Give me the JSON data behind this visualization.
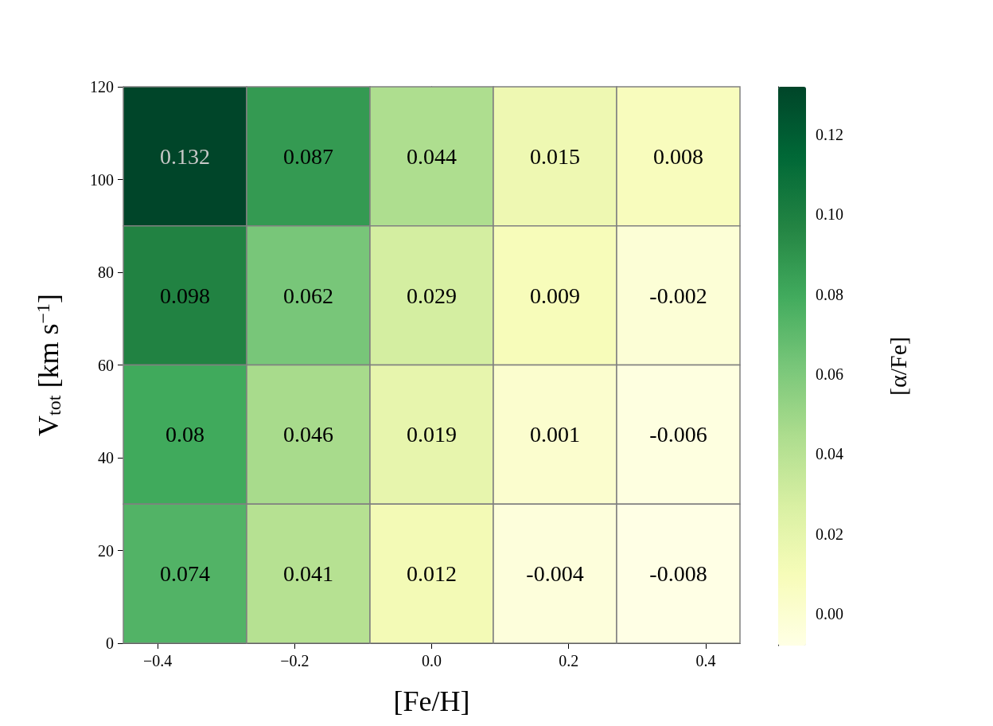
{
  "chart_data": {
    "type": "heatmap",
    "xlabel": "[Fe/H]",
    "ylabel": "V$_{tot}$ [km s$^{−1}$]",
    "clabel": "[α/Fe]",
    "cells": [
      [
        0.132,
        0.087,
        0.044,
        0.015,
        0.008
      ],
      [
        0.098,
        0.062,
        0.029,
        0.009,
        -0.002
      ],
      [
        0.08,
        0.046,
        0.019,
        0.001,
        -0.006
      ],
      [
        0.074,
        0.041,
        0.012,
        -0.004,
        -0.008
      ]
    ],
    "data_labels": true,
    "xlim": [
      -0.45,
      0.45
    ],
    "xticks": [
      {
        "value": -0.4,
        "label": "−0.4"
      },
      {
        "value": -0.2,
        "label": "−0.2"
      },
      {
        "value": 0,
        "label": "0.0"
      },
      {
        "value": 0.2,
        "label": "0.2"
      },
      {
        "value": 0.4,
        "label": "0.4"
      }
    ],
    "ylim": [
      0,
      120
    ],
    "yticks": [
      0,
      20,
      40,
      60,
      80,
      100,
      120
    ],
    "clim": [
      -0.008,
      0.132
    ],
    "cticks": [
      {
        "value": 0,
        "label": "0.00"
      },
      {
        "value": 0.02,
        "label": "0.02"
      },
      {
        "value": 0.04,
        "label": "0.04"
      },
      {
        "value": 0.06,
        "label": "0.06"
      },
      {
        "value": 0.08,
        "label": "0.08"
      },
      {
        "value": 0.1,
        "label": "0.10"
      },
      {
        "value": 0.12,
        "label": "0.12"
      }
    ]
  }
}
